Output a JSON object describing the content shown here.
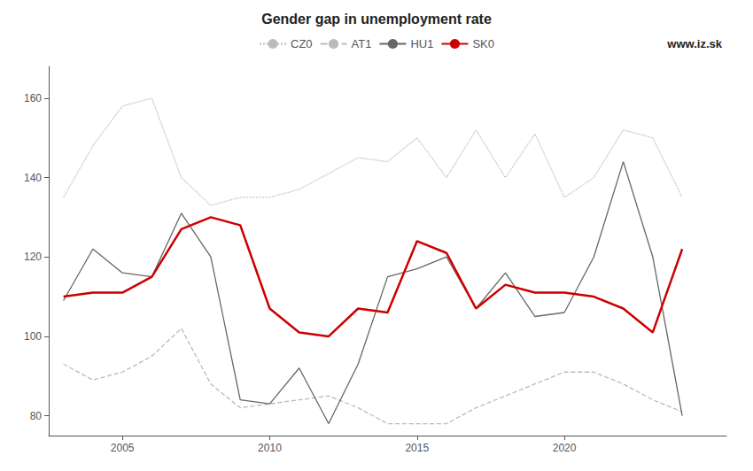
{
  "chart_data": {
    "type": "line",
    "title": "Gender gap in unemployment rate",
    "annotation": "www.iz.sk",
    "x": [
      2003,
      2004,
      2005,
      2006,
      2007,
      2008,
      2009,
      2010,
      2011,
      2012,
      2013,
      2014,
      2015,
      2016,
      2017,
      2018,
      2019,
      2020,
      2021,
      2022,
      2023,
      2024
    ],
    "series": [
      {
        "name": "CZ0",
        "color": "#bbbbbb",
        "line_style": "dotted",
        "values": [
          135,
          148,
          158,
          160,
          140,
          133,
          135,
          135,
          137,
          141,
          145,
          144,
          150,
          140,
          152,
          140,
          151,
          135,
          140,
          152,
          150,
          135
        ]
      },
      {
        "name": "AT1",
        "color": "#bbbbbb",
        "line_style": "dashed",
        "values": [
          93,
          89,
          91,
          95,
          102,
          88,
          82,
          83,
          84,
          85,
          82,
          78,
          78,
          78,
          82,
          85,
          88,
          91,
          91,
          88,
          84,
          81
        ]
      },
      {
        "name": "HU1",
        "color": "#666666",
        "line_style": "solid",
        "values": [
          109,
          122,
          116,
          115,
          131,
          120,
          84,
          83,
          92,
          78,
          93,
          115,
          117,
          120,
          107,
          116,
          105,
          106,
          120,
          144,
          120,
          80
        ]
      },
      {
        "name": "SK0",
        "color": "#cc0000",
        "line_style": "solid",
        "values": [
          110,
          111,
          111,
          115,
          127,
          130,
          128,
          107,
          101,
          100,
          107,
          106,
          124,
          121,
          107,
          113,
          111,
          111,
          110,
          107,
          101,
          122
        ]
      }
    ],
    "xlim": [
      2002.5,
      2025.5
    ],
    "xticks": [
      2005,
      2010,
      2015,
      2020
    ],
    "ylim": [
      75,
      168
    ],
    "yticks": [
      80,
      100,
      120,
      140,
      160
    ],
    "grid": false,
    "legend": "top"
  }
}
